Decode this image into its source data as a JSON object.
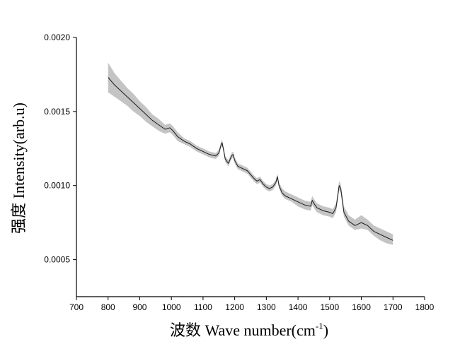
{
  "chart_data": {
    "type": "area",
    "title": "",
    "xlabel": "波数 Wave number(cm",
    "xlabel_sup": "-1",
    "xlabel_tail": ")",
    "ylabel": "强度 Intensity(arb.u)",
    "xlim": [
      700,
      1800
    ],
    "ylim": [
      0.00025,
      0.002
    ],
    "x_ticks": [
      "700",
      "800",
      "900",
      "1000",
      "1100",
      "1200",
      "1300",
      "1400",
      "1500",
      "1600",
      "1700",
      "1800"
    ],
    "y_ticks": [
      "0.0005",
      "0.0010",
      "0.0015",
      "0.0020"
    ],
    "grid": false,
    "colors": {
      "line": "#1a1a1a",
      "band": "#c4c4c4",
      "axis": "#000000"
    },
    "series": [
      {
        "x": [
          800,
          820,
          840,
          860,
          880,
          900,
          920,
          940,
          960,
          980,
          995,
          1005,
          1020,
          1040,
          1060,
          1080,
          1100,
          1120,
          1140,
          1150,
          1155,
          1160,
          1165,
          1170,
          1180,
          1190,
          1195,
          1200,
          1210,
          1220,
          1240,
          1260,
          1270,
          1280,
          1290,
          1300,
          1310,
          1320,
          1330,
          1335,
          1340,
          1350,
          1360,
          1380,
          1400,
          1420,
          1440,
          1445,
          1450,
          1460,
          1480,
          1500,
          1510,
          1520,
          1525,
          1530,
          1535,
          1540,
          1545,
          1550,
          1560,
          1580,
          1600,
          1620,
          1640,
          1660,
          1680,
          1700
        ],
        "y": [
          0.00173,
          0.00168,
          0.00164,
          0.0016,
          0.00156,
          0.00152,
          0.00148,
          0.00144,
          0.00141,
          0.00138,
          0.00139,
          0.00137,
          0.00133,
          0.0013,
          0.00128,
          0.00125,
          0.00123,
          0.00121,
          0.0012,
          0.00122,
          0.00126,
          0.00129,
          0.00124,
          0.00118,
          0.00115,
          0.0012,
          0.00121,
          0.00117,
          0.00113,
          0.00112,
          0.0011,
          0.00105,
          0.00103,
          0.00104,
          0.00101,
          0.00099,
          0.00098,
          0.00099,
          0.00102,
          0.00106,
          0.001,
          0.00095,
          0.00093,
          0.00091,
          0.00089,
          0.00087,
          0.00086,
          0.0009,
          0.00088,
          0.00085,
          0.00083,
          0.00082,
          0.00081,
          0.00085,
          0.00092,
          0.001,
          0.00098,
          0.0009,
          0.00082,
          0.0008,
          0.00076,
          0.00073,
          0.00075,
          0.00073,
          0.00069,
          0.00067,
          0.00065,
          0.00063
        ],
        "lower": [
          0.00163,
          0.0016,
          0.00157,
          0.00154,
          0.0015,
          0.00147,
          0.00143,
          0.0014,
          0.00137,
          0.00135,
          0.00136,
          0.00134,
          0.0013,
          0.00128,
          0.00126,
          0.00123,
          0.00121,
          0.00119,
          0.00118,
          0.0012,
          0.00124,
          0.00127,
          0.00122,
          0.00116,
          0.00113,
          0.00118,
          0.00119,
          0.00115,
          0.00111,
          0.0011,
          0.00108,
          0.00103,
          0.00101,
          0.00102,
          0.00099,
          0.00097,
          0.00096,
          0.00097,
          0.001,
          0.00104,
          0.00098,
          0.00093,
          0.00091,
          0.00089,
          0.00086,
          0.00084,
          0.00083,
          0.00087,
          0.00085,
          0.00082,
          0.0008,
          0.00079,
          0.00078,
          0.00082,
          0.00089,
          0.00097,
          0.00095,
          0.00087,
          0.00079,
          0.00077,
          0.00073,
          0.0007,
          0.00071,
          0.0007,
          0.00066,
          0.00063,
          0.00061,
          0.0006
        ],
        "upper": [
          0.00183,
          0.00176,
          0.00171,
          0.00166,
          0.00162,
          0.00157,
          0.00153,
          0.00148,
          0.00145,
          0.00141,
          0.00142,
          0.0014,
          0.00136,
          0.00132,
          0.0013,
          0.00127,
          0.00125,
          0.00123,
          0.00122,
          0.00124,
          0.00128,
          0.00131,
          0.00126,
          0.0012,
          0.00117,
          0.00122,
          0.00123,
          0.00119,
          0.00115,
          0.00114,
          0.00112,
          0.00107,
          0.00105,
          0.00106,
          0.00103,
          0.00101,
          0.001,
          0.00101,
          0.00104,
          0.00108,
          0.00102,
          0.00098,
          0.00096,
          0.00094,
          0.00092,
          0.0009,
          0.00089,
          0.00093,
          0.00091,
          0.00088,
          0.00086,
          0.00085,
          0.00084,
          0.00088,
          0.00095,
          0.00103,
          0.00101,
          0.00094,
          0.00086,
          0.00084,
          0.0008,
          0.00077,
          0.0008,
          0.00077,
          0.00073,
          0.00071,
          0.00069,
          0.00067
        ]
      }
    ]
  }
}
